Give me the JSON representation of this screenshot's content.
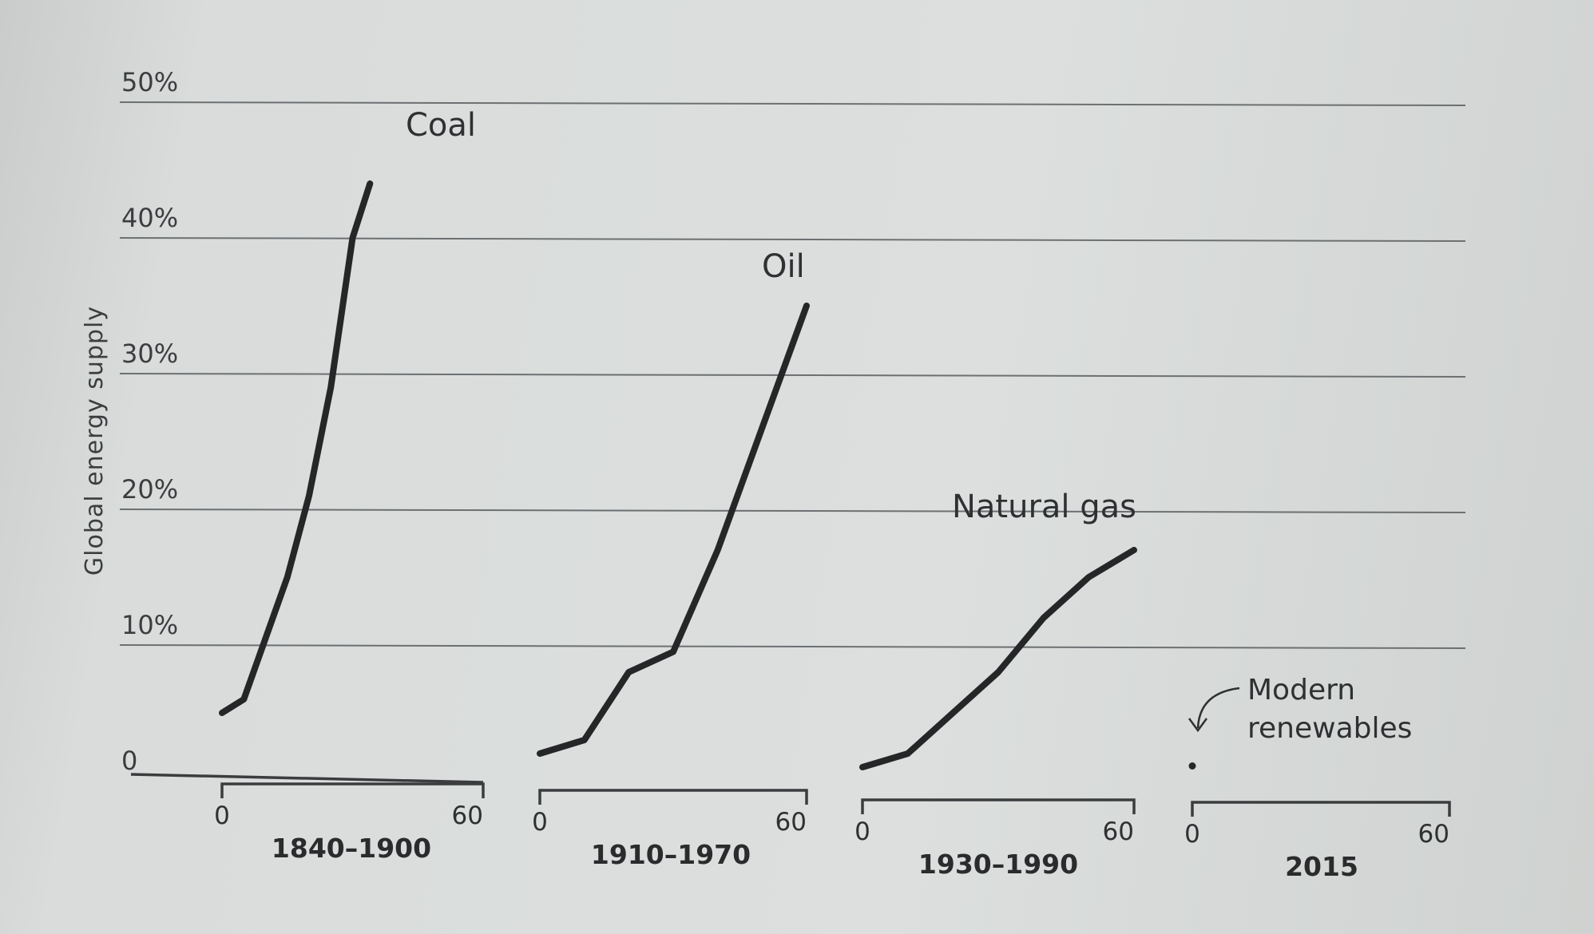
{
  "chart_data": {
    "type": "line",
    "ylabel": "Global energy supply",
    "y_ticks": [
      "0",
      "10%",
      "20%",
      "30%",
      "40%",
      "50%"
    ],
    "ylim": [
      0,
      50
    ],
    "series": [
      {
        "name": "Coal",
        "period": "1840–1900",
        "x_ticks": [
          "0",
          "60"
        ],
        "xlim": [
          0,
          60
        ],
        "points": [
          [
            0,
            5
          ],
          [
            5,
            6
          ],
          [
            15,
            15
          ],
          [
            20,
            21
          ],
          [
            25,
            29
          ],
          [
            30,
            40
          ],
          [
            34,
            44
          ]
        ]
      },
      {
        "name": "Oil",
        "period": "1910–1970",
        "x_ticks": [
          "0",
          "60"
        ],
        "xlim": [
          0,
          60
        ],
        "points": [
          [
            0,
            2
          ],
          [
            10,
            3
          ],
          [
            20,
            8
          ],
          [
            30,
            9.5
          ],
          [
            40,
            17
          ],
          [
            50,
            26
          ],
          [
            60,
            35
          ]
        ]
      },
      {
        "name": "Natural gas",
        "period": "1930–1990",
        "x_ticks": [
          "0",
          "60"
        ],
        "xlim": [
          0,
          60
        ],
        "points": [
          [
            0,
            1
          ],
          [
            10,
            2
          ],
          [
            20,
            5
          ],
          [
            30,
            8
          ],
          [
            40,
            12
          ],
          [
            50,
            15
          ],
          [
            60,
            17
          ]
        ]
      },
      {
        "name": "Modern renewables",
        "period": "2015",
        "x_ticks": [
          "0",
          "60"
        ],
        "xlim": [
          0,
          60
        ],
        "points": [
          [
            0,
            0.5
          ]
        ]
      }
    ],
    "annotations": [
      "Modern",
      "renewables"
    ]
  }
}
